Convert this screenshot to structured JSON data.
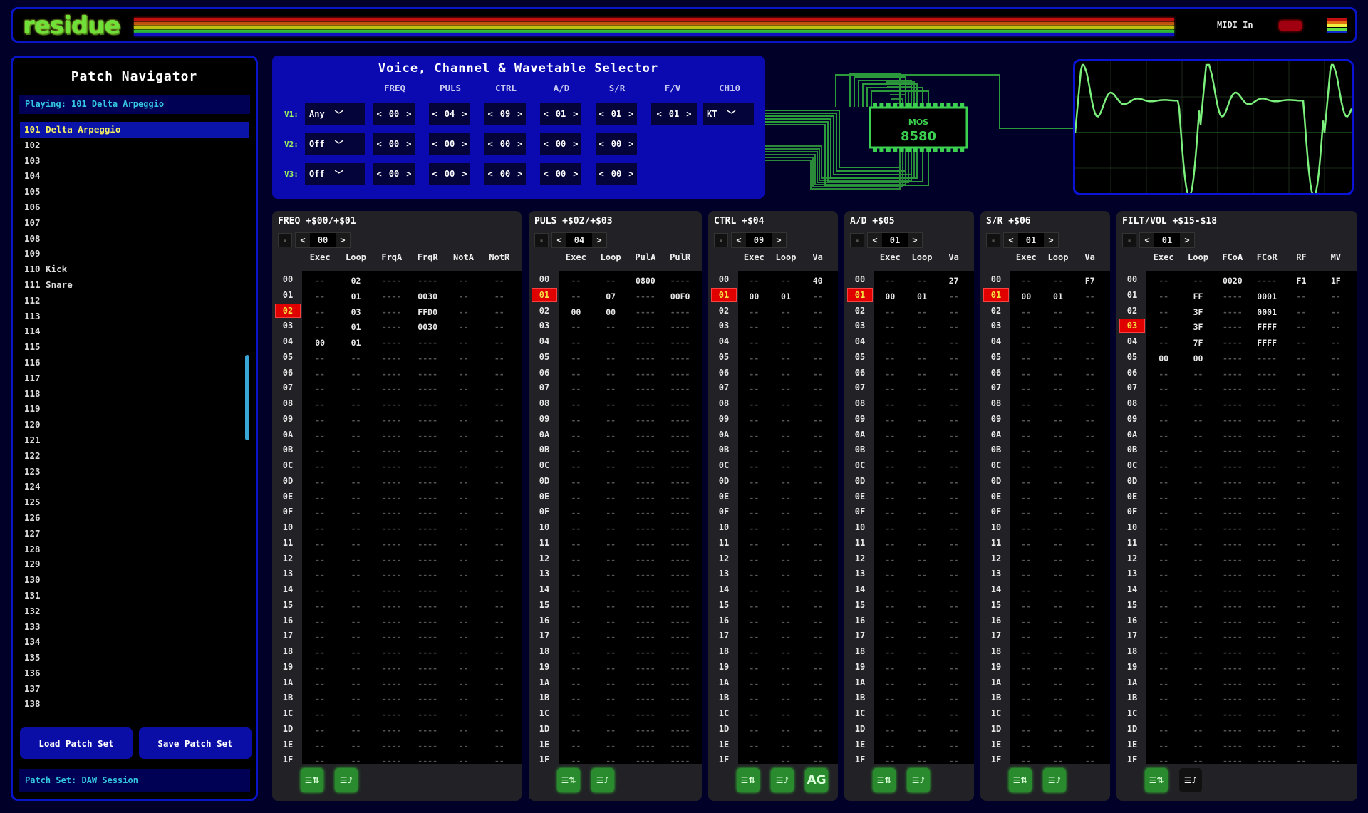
{
  "app": {
    "logo": "residue",
    "midi_label": "MIDI In",
    "stripe_colors": [
      "#c01010",
      "#c05010",
      "#c0c010",
      "#30c030",
      "#1010c0"
    ],
    "menu_colors": [
      "#c01010",
      "#e07010",
      "#f0f040",
      "#60e040",
      "#1028d0"
    ]
  },
  "sidebar": {
    "title": "Patch Navigator",
    "playing": "Playing: 101 Delta Arpeggio",
    "patches": [
      "101 Delta Arpeggio",
      "102",
      "103",
      "104",
      "105",
      "106",
      "107",
      "108",
      "109",
      "110 Kick",
      "111 Snare",
      "112",
      "113",
      "114",
      "115",
      "116",
      "117",
      "118",
      "119",
      "120",
      "121",
      "122",
      "123",
      "124",
      "125",
      "126",
      "127",
      "128",
      "129",
      "130",
      "131",
      "132",
      "133",
      "134",
      "135",
      "136",
      "137",
      "138"
    ],
    "selected_index": 0,
    "load_label": "Load Patch Set",
    "save_label": "Save Patch Set",
    "patch_set": "Patch Set: DAW Session"
  },
  "voice": {
    "title": "Voice, Channel & Wavetable Selector",
    "headers": [
      "FREQ",
      "PULS",
      "CTRL",
      "A/D",
      "S/R",
      "F/V",
      "CH10"
    ],
    "rows": [
      {
        "label": "V1:",
        "mode": "Any",
        "values": [
          "00",
          "04",
          "09",
          "01",
          "01",
          "01"
        ],
        "ch10": "KT"
      },
      {
        "label": "V2:",
        "mode": "Off",
        "values": [
          "00",
          "00",
          "00",
          "00",
          "00"
        ]
      },
      {
        "label": "V3:",
        "mode": "Off",
        "values": [
          "00",
          "00",
          "00",
          "00",
          "00"
        ]
      }
    ]
  },
  "chip": {
    "label_top": "MOS",
    "label": "8580"
  },
  "row_labels": [
    "00",
    "01",
    "02",
    "03",
    "04",
    "05",
    "06",
    "07",
    "08",
    "09",
    "0A",
    "0B",
    "0C",
    "0D",
    "0E",
    "0F",
    "10",
    "11",
    "12",
    "13",
    "14",
    "15",
    "16",
    "17",
    "18",
    "19",
    "1A",
    "1B",
    "1C",
    "1D",
    "1E",
    "1F"
  ],
  "tables": [
    {
      "title": "FREQ +$00/+$01",
      "selector": "00",
      "highlight": 2,
      "columns": [
        "Exec",
        "Loop",
        "FrqA",
        "FrqR",
        "NotA",
        "NotR"
      ],
      "empty": [
        "--",
        "--",
        "----",
        "----",
        "--",
        "--"
      ],
      "rows": [
        [
          "--",
          "02",
          "----",
          "----",
          "--",
          "--"
        ],
        [
          "--",
          "01",
          "----",
          "0030",
          "--",
          "--"
        ],
        [
          "--",
          "03",
          "----",
          "FFD0",
          "--",
          "--"
        ],
        [
          "--",
          "01",
          "----",
          "0030",
          "--",
          "--"
        ],
        [
          "00",
          "01",
          "----",
          "----",
          "--",
          "--"
        ]
      ],
      "footer": [
        "swap",
        "note"
      ]
    },
    {
      "title": "PULS +$02/+$03",
      "selector": "04",
      "highlight": 1,
      "columns": [
        "Exec",
        "Loop",
        "PulA",
        "PulR"
      ],
      "empty": [
        "--",
        "--",
        "----",
        "----"
      ],
      "rows": [
        [
          "--",
          "--",
          "0800",
          "----"
        ],
        [
          "--",
          "07",
          "----",
          "00F0"
        ],
        [
          "00",
          "00",
          "----",
          "----"
        ]
      ],
      "footer": [
        "swap",
        "note"
      ]
    },
    {
      "title": "CTRL +$04",
      "selector": "09",
      "highlight": 1,
      "columns": [
        "Exec",
        "Loop",
        "Va"
      ],
      "empty": [
        "--",
        "--",
        "--"
      ],
      "rows": [
        [
          "--",
          "--",
          "40"
        ],
        [
          "00",
          "01",
          "--"
        ]
      ],
      "footer": [
        "swap",
        "note",
        "AG"
      ]
    },
    {
      "title": "A/D +$05",
      "selector": "01",
      "highlight": 1,
      "columns": [
        "Exec",
        "Loop",
        "Va"
      ],
      "empty": [
        "--",
        "--",
        "--"
      ],
      "rows": [
        [
          "--",
          "--",
          "27"
        ],
        [
          "00",
          "01",
          "--"
        ]
      ],
      "footer": [
        "swap",
        "note"
      ]
    },
    {
      "title": "S/R +$06",
      "selector": "01",
      "highlight": 1,
      "columns": [
        "Exec",
        "Loop",
        "Va"
      ],
      "empty": [
        "--",
        "--",
        "--"
      ],
      "rows": [
        [
          "--",
          "--",
          "F7"
        ],
        [
          "00",
          "01",
          "--"
        ]
      ],
      "footer": [
        "swap",
        "note"
      ]
    },
    {
      "title": "FILT/VOL +$15-$18",
      "selector": "01",
      "highlight": 3,
      "columns": [
        "Exec",
        "Loop",
        "FCoA",
        "FCoR",
        "RF",
        "MV"
      ],
      "empty": [
        "--",
        "--",
        "----",
        "----",
        "--",
        "--"
      ],
      "rows": [
        [
          "--",
          "--",
          "0020",
          "----",
          "F1",
          "1F"
        ],
        [
          "--",
          "FF",
          "----",
          "0001",
          "--",
          "--"
        ],
        [
          "--",
          "3F",
          "----",
          "0001",
          "--",
          "--"
        ],
        [
          "--",
          "3F",
          "----",
          "FFFF",
          "--",
          "--"
        ],
        [
          "--",
          "7F",
          "----",
          "FFFF",
          "--",
          "--"
        ],
        [
          "00",
          "00",
          "----",
          "----",
          "--",
          "--"
        ]
      ],
      "footer": [
        "swap",
        "note-alt"
      ]
    }
  ]
}
